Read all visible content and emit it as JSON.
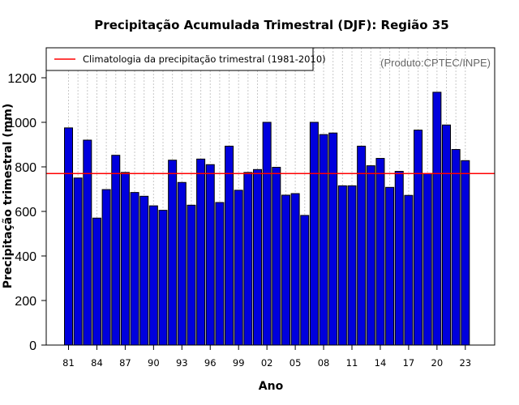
{
  "chart_data": {
    "type": "bar",
    "title": "Precipitação Acumulada Trimestral (DJF): Região 35",
    "xlabel": "Ano",
    "ylabel": "Precipitação trimestral (mm)",
    "credit": "(Produto:CPTEC/INPE)",
    "ylim": [
      0,
      1330
    ],
    "yticks": [
      0,
      200,
      400,
      600,
      800,
      1000,
      1200
    ],
    "xtick_labels": [
      "81",
      "84",
      "87",
      "90",
      "93",
      "96",
      "99",
      "02",
      "05",
      "08",
      "11",
      "14",
      "17",
      "20",
      "23"
    ],
    "categories": [
      "1981",
      "1982",
      "1983",
      "1984",
      "1985",
      "1986",
      "1987",
      "1988",
      "1989",
      "1990",
      "1991",
      "1992",
      "1993",
      "1994",
      "1995",
      "1996",
      "1997",
      "1998",
      "1999",
      "2000",
      "2001",
      "2002",
      "2003",
      "2004",
      "2005",
      "2006",
      "2007",
      "2008",
      "2009",
      "2010",
      "2011",
      "2012",
      "2013",
      "2014",
      "2015",
      "2016",
      "2017",
      "2018",
      "2019",
      "2020",
      "2021",
      "2022",
      "2023"
    ],
    "values": [
      975,
      750,
      920,
      570,
      698,
      852,
      775,
      685,
      668,
      625,
      605,
      830,
      730,
      628,
      835,
      810,
      640,
      893,
      695,
      775,
      788,
      1000,
      798,
      673,
      680,
      582,
      1000,
      945,
      952,
      715,
      715,
      893,
      805,
      838,
      708,
      780,
      672,
      965,
      770,
      1135,
      988,
      878,
      828
    ],
    "climatology": {
      "label": "Climatologia da precipitação trimestral (1981-2010)",
      "value": 770
    },
    "colors": {
      "bar": "#0000dd",
      "bar_edge": "#000000",
      "climatology": "#ff0000",
      "grid": "#c8c8c8"
    },
    "grid": true,
    "legend_position": "top-left"
  }
}
